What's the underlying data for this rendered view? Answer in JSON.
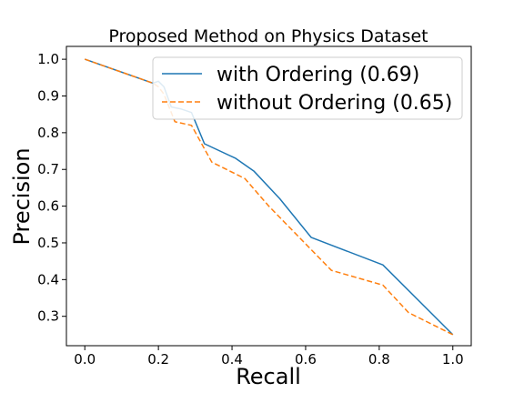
{
  "chart_data": {
    "type": "line",
    "title": "Proposed Method on Physics Dataset",
    "xlabel": "Recall",
    "ylabel": "Precision",
    "xlim": [
      -0.05,
      1.05
    ],
    "ylim": [
      0.22,
      1.035
    ],
    "xticks": [
      "0.0",
      "0.2",
      "0.4",
      "0.6",
      "0.8",
      "1.0"
    ],
    "yticks": [
      "0.3",
      "0.4",
      "0.5",
      "0.6",
      "0.7",
      "0.8",
      "0.9",
      "1.0"
    ],
    "legend_position": "top-right",
    "grid": false,
    "series": [
      {
        "name": "with Ordering (0.69)",
        "color": "#1f77b4",
        "style": "solid",
        "x": [
          0.0,
          0.185,
          0.2,
          0.215,
          0.235,
          0.26,
          0.29,
          0.325,
          0.41,
          0.46,
          0.53,
          0.615,
          0.81,
          1.0
        ],
        "y": [
          1.0,
          0.935,
          0.94,
          0.925,
          0.87,
          0.865,
          0.855,
          0.77,
          0.73,
          0.695,
          0.62,
          0.515,
          0.44,
          0.25
        ]
      },
      {
        "name": "without Ordering (0.65)",
        "color": "#ff7f0e",
        "style": "dashed",
        "x": [
          0.0,
          0.185,
          0.2,
          0.215,
          0.245,
          0.29,
          0.345,
          0.435,
          0.5,
          0.67,
          0.81,
          0.88,
          1.0
        ],
        "y": [
          1.0,
          0.935,
          0.925,
          0.905,
          0.83,
          0.82,
          0.72,
          0.675,
          0.6,
          0.425,
          0.385,
          0.31,
          0.25
        ]
      }
    ]
  }
}
